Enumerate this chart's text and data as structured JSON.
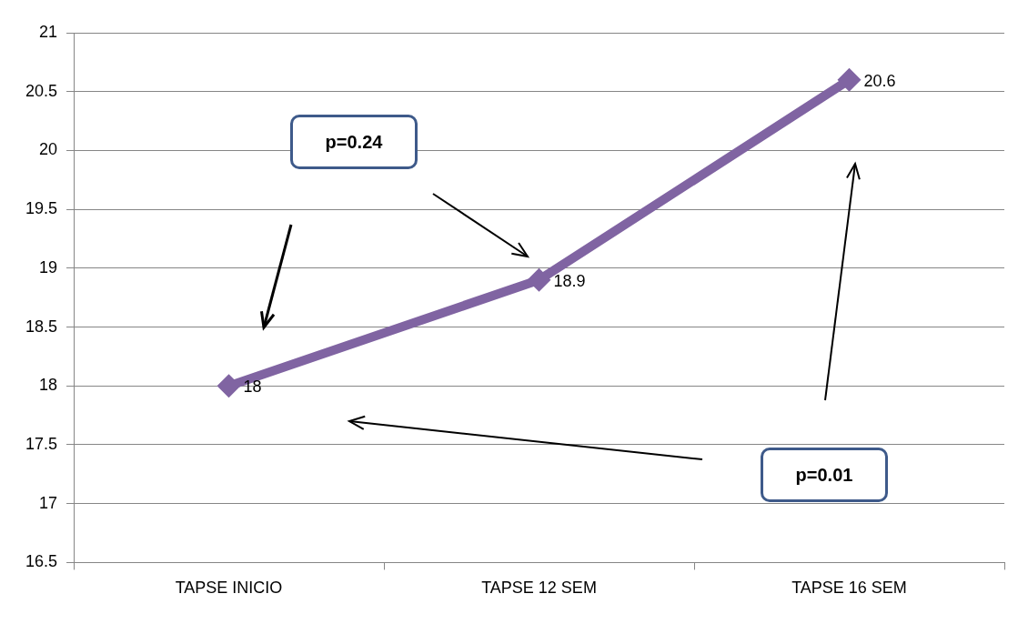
{
  "chart_data": {
    "type": "line",
    "categories": [
      "TAPSE INICIO",
      "TAPSE 12 SEM",
      "TAPSE 16 SEM"
    ],
    "series": [
      {
        "color": "#8064a2",
        "values": [
          18,
          18.9,
          20.6
        ]
      }
    ],
    "ylim": [
      16.5,
      21
    ],
    "yticks": [
      16.5,
      17,
      17.5,
      18,
      18.5,
      19,
      19.5,
      20,
      20.5,
      21
    ],
    "grid": "y",
    "legend": false,
    "marker": "diamond",
    "line_style": "solid",
    "data_labels": true,
    "annotations": [
      "p=0.24",
      "p=0.01"
    ]
  }
}
